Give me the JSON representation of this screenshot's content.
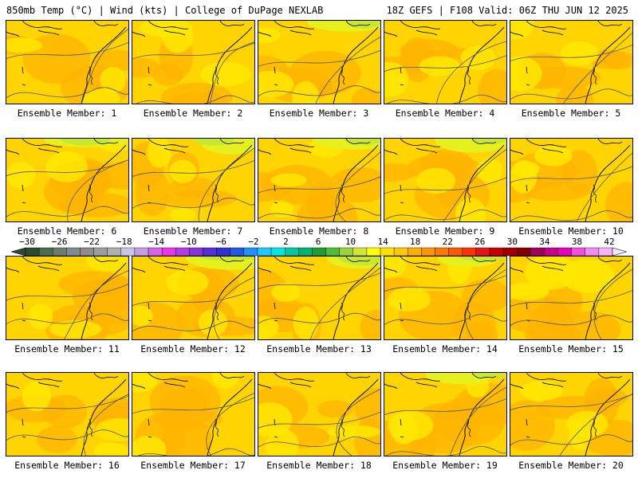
{
  "header": {
    "title_left": "850mb Temp (°C) | Wind (kts) | College of DuPage NEXLAB",
    "title_right": "18Z GEFS | F108 Valid: 06Z THU JUN 12 2025"
  },
  "members": [
    "Ensemble Member: 1",
    "Ensemble Member: 2",
    "Ensemble Member: 3",
    "Ensemble Member: 4",
    "Ensemble Member: 5",
    "Ensemble Member: 6",
    "Ensemble Member: 7",
    "Ensemble Member: 8",
    "Ensemble Member: 9",
    "Ensemble Member: 10",
    "Ensemble Member: 11",
    "Ensemble Member: 12",
    "Ensemble Member: 13",
    "Ensemble Member: 14",
    "Ensemble Member: 15",
    "Ensemble Member: 16",
    "Ensemble Member: 17",
    "Ensemble Member: 18",
    "Ensemble Member: 19",
    "Ensemble Member: 20"
  ],
  "colorbar": {
    "tick_labels": [
      "−30",
      "−26",
      "−22",
      "−18",
      "−14",
      "−10",
      "−6",
      "−2",
      "2",
      "6",
      "10",
      "14",
      "18",
      "22",
      "26",
      "30",
      "34",
      "38",
      "42"
    ],
    "colors": [
      "#2e4a2e",
      "#4f6b4f",
      "#6e7a6e",
      "#7e8c8c",
      "#8d8d8d",
      "#9d9d9d",
      "#b0b0b0",
      "#c8c8e6",
      "#c79fe0",
      "#d763e6",
      "#e838e8",
      "#b43ce6",
      "#8a34e0",
      "#5a2dd8",
      "#3230d0",
      "#1e5ae6",
      "#1e90ff",
      "#1ec8ff",
      "#00e6e6",
      "#00c8a0",
      "#00b46e",
      "#1e9e32",
      "#4fbe32",
      "#9cd23c",
      "#d2e632",
      "#ffff00",
      "#ffe100",
      "#ffc800",
      "#ffaf00",
      "#ff9600",
      "#ff7800",
      "#ff5a00",
      "#ff3200",
      "#e61414",
      "#c80000",
      "#a00000",
      "#820000",
      "#a0005a",
      "#c8008c",
      "#e600be",
      "#f050dc",
      "#f38cf0",
      "#f5b4f5"
    ]
  },
  "fill_colors": {
    "base": "#ffd400",
    "warm": "#ffb400",
    "cool": "#ffe800",
    "green": "#c8e632",
    "lightgreen": "#e6f01e"
  }
}
